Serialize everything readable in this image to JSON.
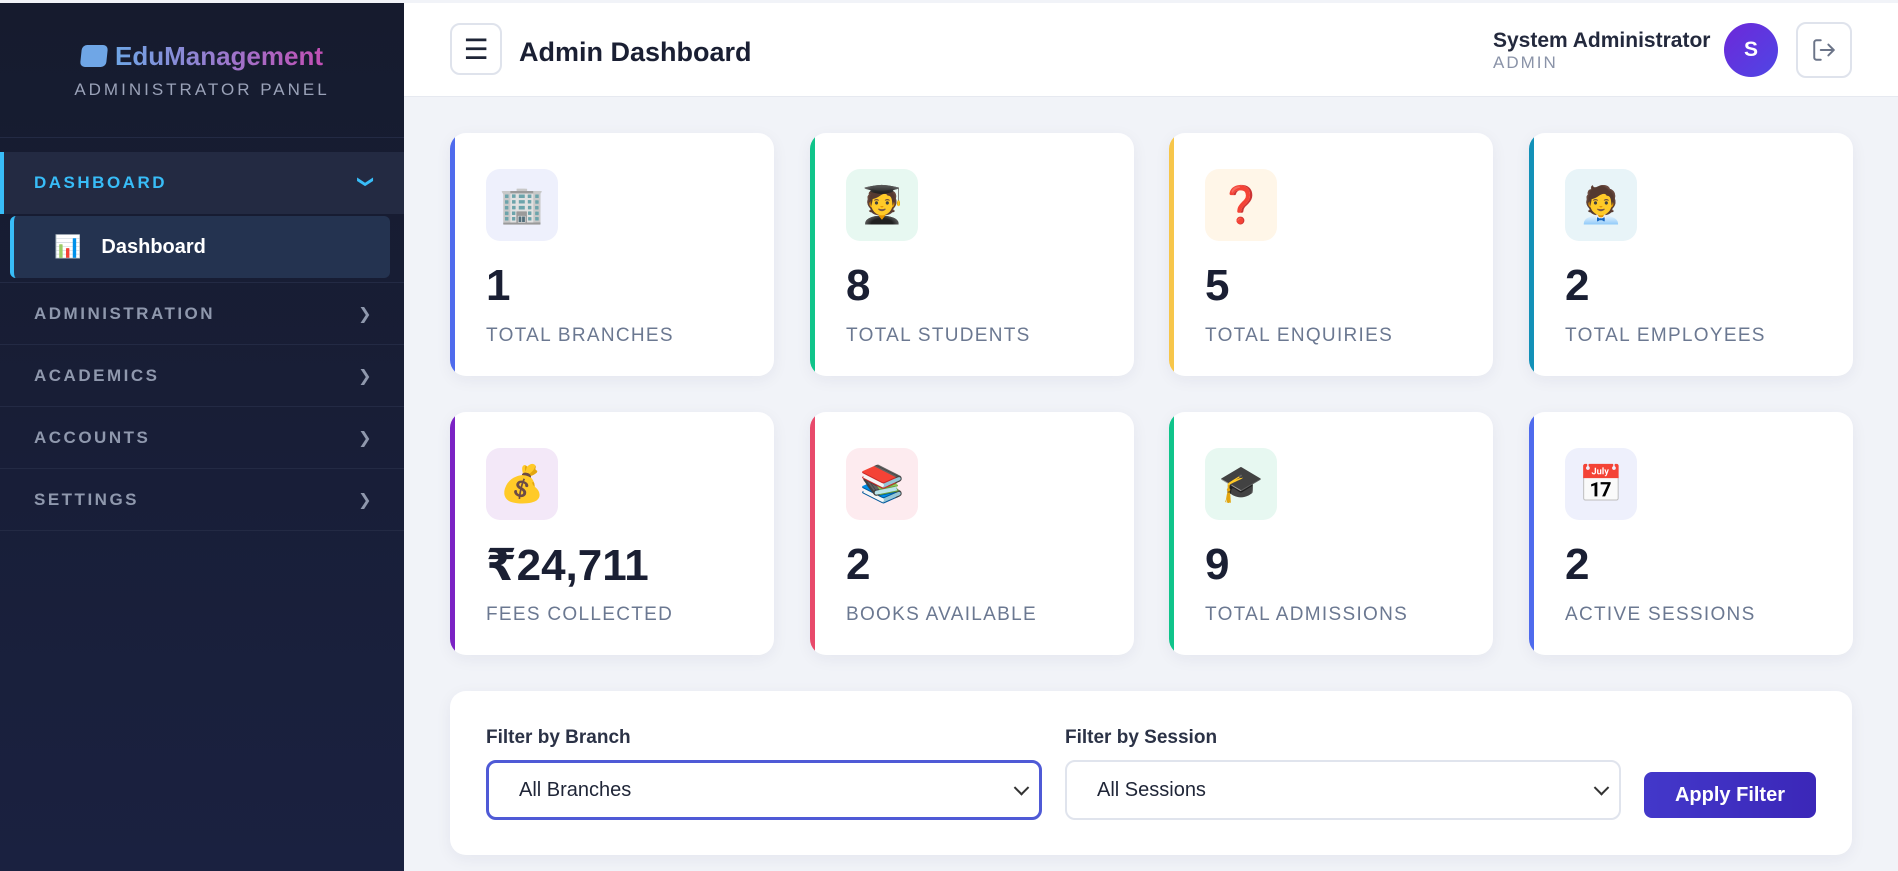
{
  "sidebar": {
    "brand_name": "EduManagement",
    "brand_sub": "ADMINISTRATOR PANEL",
    "sections": [
      {
        "label": "DASHBOARD",
        "expanded": true,
        "items": [
          {
            "label": "Dashboard",
            "icon": "bar-chart-icon",
            "glyph": "📊",
            "active": true
          }
        ]
      },
      {
        "label": "ADMINISTRATION",
        "expanded": false
      },
      {
        "label": "ACADEMICS",
        "expanded": false
      },
      {
        "label": "ACCOUNTS",
        "expanded": false
      },
      {
        "label": "SETTINGS",
        "expanded": false
      }
    ]
  },
  "header": {
    "title": "Admin Dashboard",
    "user_name": "System Administrator",
    "user_role": "ADMIN",
    "avatar_initial": "S"
  },
  "stats": [
    {
      "value": "1",
      "label": "TOTAL BRANCHES",
      "icon": "office-building-icon",
      "glyph": "🏢",
      "accent": "#4f6bed",
      "icon_bg": "#eef0fc"
    },
    {
      "value": "8",
      "label": "TOTAL STUDENTS",
      "icon": "student-icon",
      "glyph": "🧑‍🎓",
      "accent": "#10c48a",
      "icon_bg": "#e7f8f1"
    },
    {
      "value": "5",
      "label": "TOTAL ENQUIRIES",
      "icon": "question-mark-icon",
      "glyph": "❓",
      "accent": "#f7c64a",
      "icon_bg": "#fff6e8"
    },
    {
      "value": "2",
      "label": "TOTAL EMPLOYEES",
      "icon": "office-worker-icon",
      "glyph": "🧑‍💼",
      "accent": "#1391b8",
      "icon_bg": "#e8f4f8"
    },
    {
      "value": "₹24,711",
      "label": "FEES COLLECTED",
      "icon": "money-bag-icon",
      "glyph": "💰",
      "accent": "#7b22c4",
      "icon_bg": "#f3e8f8"
    },
    {
      "value": "2",
      "label": "BOOKS AVAILABLE",
      "icon": "books-icon",
      "glyph": "📚",
      "accent": "#e84a6b",
      "icon_bg": "#fdebef"
    },
    {
      "value": "9",
      "label": "TOTAL ADMISSIONS",
      "icon": "graduation-cap-icon",
      "glyph": "🎓",
      "accent": "#10c48a",
      "icon_bg": "#e7f8f1"
    },
    {
      "value": "2",
      "label": "ACTIVE SESSIONS",
      "icon": "calendar-icon",
      "glyph": "📅",
      "accent": "#4f6bed",
      "icon_bg": "#eef0fc"
    }
  ],
  "filters": {
    "branch_label": "Filter by Branch",
    "branch_value": "All Branches",
    "session_label": "Filter by Session",
    "session_value": "All Sessions",
    "apply_label": "Apply Filter"
  }
}
